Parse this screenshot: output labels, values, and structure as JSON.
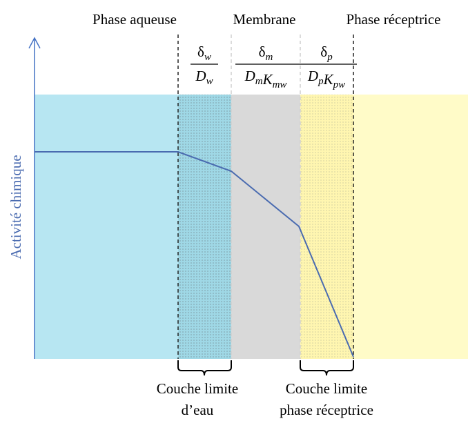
{
  "regions": [
    "Phase aqueuse",
    "Membrane",
    "Phase réceptrice"
  ],
  "axis_label": "Activité chimique",
  "fractions": [
    {
      "num": {
        "symbol": "δ",
        "sub": "w"
      },
      "den": [
        {
          "symbol": "D",
          "sub": "w"
        }
      ]
    },
    {
      "num": {
        "symbol": "δ",
        "sub": "m"
      },
      "den": [
        {
          "symbol": "D",
          "sub": "m"
        },
        {
          "symbol": "K",
          "sub": "mw"
        }
      ]
    },
    {
      "num": {
        "symbol": "δ",
        "sub": "p"
      },
      "den": [
        {
          "symbol": "D",
          "sub": "p"
        },
        {
          "symbol": "K",
          "sub": "pw"
        }
      ]
    }
  ],
  "boundary_layers": [
    {
      "line1": "Couche limite",
      "line2": "d’eau"
    },
    {
      "line1": "Couche limite",
      "line2": "phase réceptrice"
    }
  ]
}
